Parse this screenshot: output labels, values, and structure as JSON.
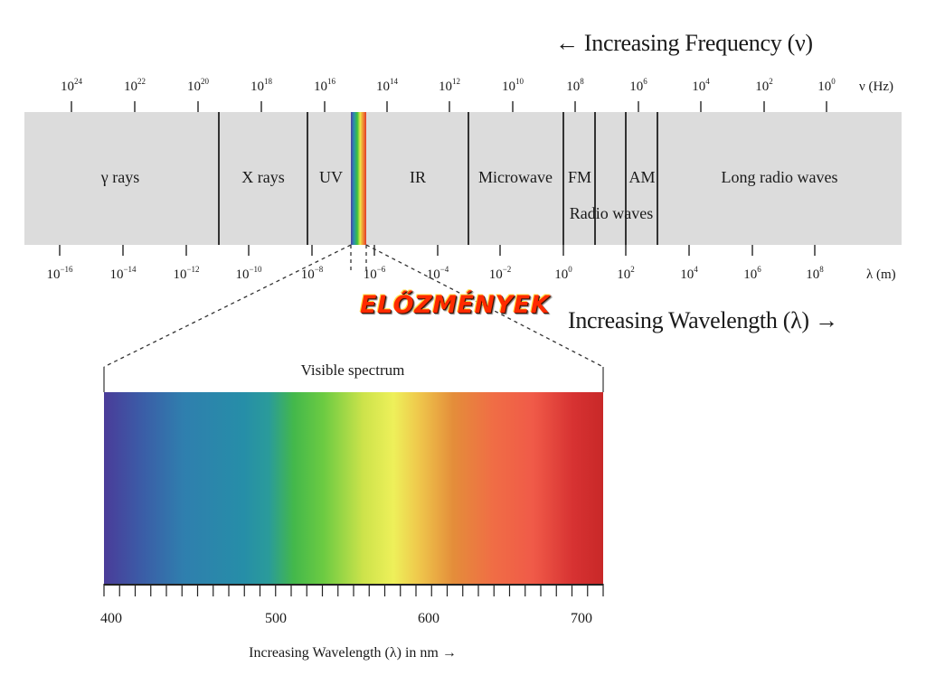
{
  "frequency_title": "← Increasing Frequency (ν)",
  "frequency_unit": "ν (Hz)",
  "frequency_ticks": [
    {
      "base": "10",
      "exp": "24"
    },
    {
      "base": "10",
      "exp": "22"
    },
    {
      "base": "10",
      "exp": "20"
    },
    {
      "base": "10",
      "exp": "18"
    },
    {
      "base": "10",
      "exp": "16"
    },
    {
      "base": "10",
      "exp": "14"
    },
    {
      "base": "10",
      "exp": "12"
    },
    {
      "base": "10",
      "exp": "10"
    },
    {
      "base": "10",
      "exp": "8"
    },
    {
      "base": "10",
      "exp": "6"
    },
    {
      "base": "10",
      "exp": "4"
    },
    {
      "base": "10",
      "exp": "2"
    },
    {
      "base": "10",
      "exp": "0"
    }
  ],
  "regions": {
    "gamma": "γ rays",
    "xrays": "X rays",
    "uv": "UV",
    "ir": "IR",
    "microwave": "Microwave",
    "fm": "FM",
    "am": "AM",
    "radio": "Radio waves",
    "long_radio": "Long radio waves"
  },
  "wavelength_unit": "λ (m)",
  "wavelength_ticks": [
    {
      "base": "10",
      "exp": "−16"
    },
    {
      "base": "10",
      "exp": "−14"
    },
    {
      "base": "10",
      "exp": "−12"
    },
    {
      "base": "10",
      "exp": "−10"
    },
    {
      "base": "10",
      "exp": "−8"
    },
    {
      "base": "10",
      "exp": "−6"
    },
    {
      "base": "10",
      "exp": "−4"
    },
    {
      "base": "10",
      "exp": "−2"
    },
    {
      "base": "10",
      "exp": "0"
    },
    {
      "base": "10",
      "exp": "2"
    },
    {
      "base": "10",
      "exp": "4"
    },
    {
      "base": "10",
      "exp": "6"
    },
    {
      "base": "10",
      "exp": "8"
    }
  ],
  "headline": "ELŐZMÉNYEK",
  "wavelength_title": "Increasing Wavelength (λ) →",
  "visible_title": "Visible spectrum",
  "nm_ticks": [
    "400",
    "500",
    "600",
    "700"
  ],
  "nm_title": "Increasing Wavelength (λ) in nm →"
}
